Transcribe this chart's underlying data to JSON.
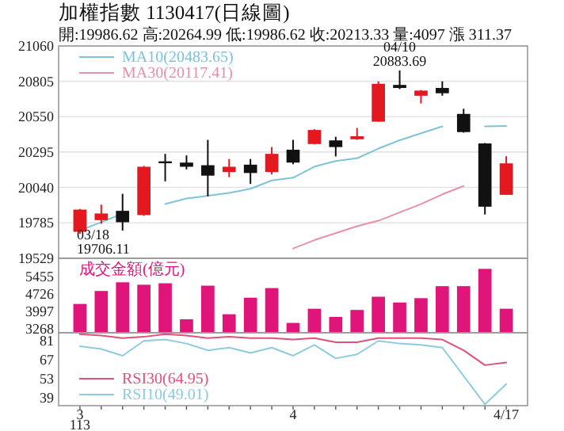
{
  "chart_data": [
    {
      "type": "candlestick",
      "title": "加權指數 1130417(日線圖)",
      "subtitle": "開:19986.62 高:20264.99 低:19986.62 收:20213.33 量:4097 漲 311.37",
      "categories": [
        null,
        null,
        null,
        null,
        null,
        null,
        null,
        null,
        null,
        null,
        null,
        null,
        null,
        null,
        null,
        null,
        null,
        null,
        null,
        null,
        null
      ],
      "ohlc": [
        [
          19720,
          19885,
          19706.11,
          19880
        ],
        [
          19804,
          19916,
          19778,
          19852
        ],
        [
          19871,
          19994,
          19729,
          19789
        ],
        [
          19841,
          20195,
          19835,
          20189
        ],
        [
          20228,
          20282,
          20084,
          20224
        ],
        [
          20219,
          20271,
          20170,
          20189
        ],
        [
          20200,
          20383,
          19976,
          20125
        ],
        [
          20151,
          20245,
          20114,
          20189
        ],
        [
          20204,
          20245,
          20065,
          20144
        ],
        [
          20151,
          20331,
          20133,
          20282
        ],
        [
          20312,
          20383,
          20207,
          20219
        ],
        [
          20353,
          20460,
          20350,
          20454
        ],
        [
          20379,
          20405,
          20263,
          20331
        ],
        [
          20387,
          20469,
          20383,
          20409
        ],
        [
          20514,
          20805,
          20514,
          20787
        ],
        [
          20779,
          20883.69,
          20749,
          20757
        ],
        [
          20701,
          20742,
          20645,
          20738
        ],
        [
          20757,
          20805,
          20701,
          20719
        ],
        [
          20570,
          20607,
          20435,
          20439
        ],
        [
          20357,
          20360,
          19845,
          19901
        ],
        [
          19986.62,
          20264.99,
          19986.62,
          20213.33
        ]
      ],
      "colors": [
        "#e3191f",
        "#e3191f",
        "#111111",
        "#e3191f",
        "#111111",
        "#111111",
        "#111111",
        "#e3191f",
        "#111111",
        "#e3191f",
        "#111111",
        "#e3191f",
        "#111111",
        "#e3191f",
        "#e3191f",
        "#111111",
        "#e3191f",
        "#111111",
        "#111111",
        "#111111",
        "#e3191f"
      ],
      "series": [
        {
          "name": "MA10(20483.65)",
          "color": "#7fc3d8",
          "type": "line",
          "values": [
            19730,
            19790,
            19850,
            null,
            19920,
            19960,
            19980,
            20000,
            20030,
            20090,
            20110,
            20190,
            20230,
            20250,
            20320,
            20380,
            20430,
            20480,
            null,
            20480,
            20483.65
          ]
        },
        {
          "name": "MA30(20117.41)",
          "color": "#e890a8",
          "type": "line",
          "values": [
            null,
            null,
            null,
            null,
            null,
            null,
            null,
            null,
            null,
            null,
            19600,
            19660,
            19710,
            19760,
            19800,
            19860,
            19920,
            19990,
            20050,
            null,
            null
          ]
        }
      ],
      "ylim": [
        19529,
        21060
      ],
      "yticks": [
        19529,
        19785,
        20040,
        20295,
        20550,
        20805,
        21060
      ],
      "grid": "y",
      "legend": "top left",
      "tick_labels": "y",
      "annotations": [
        {
          "text": "04/10\n20883.69",
          "y": 20883.69
        },
        "03/18\n19706.11"
      ]
    },
    {
      "type": "bar",
      "categories": [
        null,
        null,
        null,
        null,
        null,
        null,
        null,
        null,
        null,
        null,
        null,
        null,
        null,
        null,
        null,
        null,
        null,
        null,
        null,
        null,
        null
      ],
      "series": [
        {
          "name": "成交金額(億元)",
          "color": "#e0157a",
          "values": [
            4300,
            4840,
            5200,
            5100,
            5160,
            3660,
            5060,
            3870,
            4560,
            4960,
            3510,
            4100,
            3760,
            4050,
            4600,
            4360,
            4540,
            5040,
            5040,
            5760,
            4100
          ]
        }
      ],
      "ylim": [
        3100,
        6200
      ],
      "yticks": [
        3268,
        3997,
        4726,
        5455
      ],
      "legend": "top left",
      "tick_labels": "y"
    },
    {
      "type": "line",
      "categories": [
        "3",
        null,
        null,
        null,
        null,
        null,
        null,
        null,
        null,
        null,
        "4",
        null,
        null,
        null,
        null,
        null,
        null,
        null,
        null,
        null,
        "4/17"
      ],
      "series": [
        {
          "name": "RSI30(64.95)",
          "color": "#e0507a",
          "values": [
            86,
            85,
            83,
            84,
            86,
            85,
            83,
            84,
            83,
            83,
            82,
            83,
            80,
            80,
            83,
            83,
            83,
            82,
            74,
            63,
            64.95
          ]
        },
        {
          "name": "RSI10(49.01)",
          "color": "#8ccbe0",
          "values": [
            77,
            75,
            70,
            81,
            82,
            79,
            74,
            76,
            72,
            76,
            70,
            78,
            68,
            71,
            81,
            79,
            78,
            76,
            55,
            34,
            49.01
          ]
        }
      ],
      "ylim": [
        33,
        87
      ],
      "yticks": [
        39,
        53,
        67,
        81
      ],
      "legend": "bottom left",
      "annotations": [
        "113"
      ]
    }
  ]
}
